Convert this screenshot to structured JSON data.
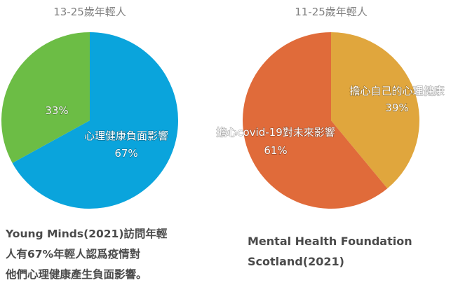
{
  "chart_data": [
    {
      "type": "pie",
      "title": "13-25歲年輕人",
      "slices": [
        {
          "label": "心理健康負面影響",
          "value": 67,
          "value_label": "67%",
          "color": "#0aa4dc"
        },
        {
          "label": "",
          "value": 33,
          "value_label": "33%",
          "color": "#6cbd45"
        }
      ]
    },
    {
      "type": "pie",
      "title": "11-25歲年輕人",
      "slices": [
        {
          "label": "擔心自己的心理健康",
          "value": 39,
          "value_label": "39%",
          "color": "#e0a63d"
        },
        {
          "label": "擔心covid-19對未來影響",
          "value": 61,
          "value_label": "61%",
          "color": "#e06b3a"
        }
      ]
    }
  ],
  "captions": {
    "left": [
      "Young Minds(2021)訪問年輕",
      "人有67%年輕人認爲疫情對",
      "他們心理健康產生負面影響。"
    ],
    "right": [
      "Mental Health Foundation",
      "Scotland(2021)"
    ]
  }
}
